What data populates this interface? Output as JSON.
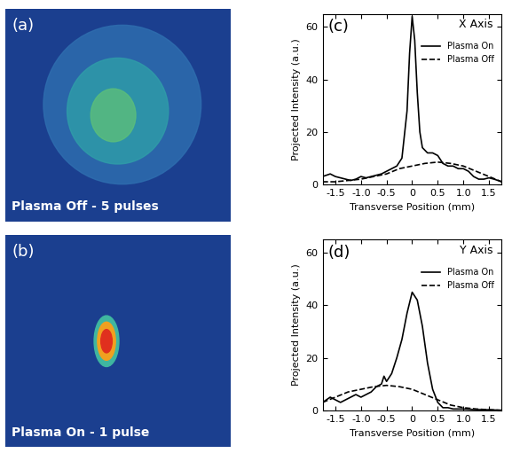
{
  "chart_data": [
    {
      "type": "image",
      "annotations": [
        "(a)",
        "Plasma Off - 5 pulses"
      ]
    },
    {
      "type": "image",
      "annotations": [
        "(b)",
        "Plasma On - 1 pulse"
      ]
    },
    {
      "type": "line",
      "annotations": [
        "(c)",
        "X Axis"
      ],
      "x_label": "Transverse Position (mm)",
      "y_label": "Projected Intensity (a.u.)",
      "xlim": [
        -1.75,
        1.75
      ],
      "xticks": [
        -1.5,
        -1.0,
        -0.5,
        0,
        0.5,
        1.0,
        1.5
      ],
      "ylim": [
        0,
        65
      ],
      "yticks": [
        0,
        20,
        40,
        60
      ],
      "legend": "upper right",
      "series": [
        {
          "name": "Plasma On",
          "line_style": "solid",
          "color": "#000000",
          "x": [
            -1.75,
            -1.6,
            -1.5,
            -1.4,
            -1.3,
            -1.2,
            -1.1,
            -1.0,
            -0.9,
            -0.8,
            -0.7,
            -0.6,
            -0.5,
            -0.4,
            -0.3,
            -0.2,
            -0.1,
            -0.05,
            0,
            0.05,
            0.1,
            0.15,
            0.2,
            0.3,
            0.4,
            0.5,
            0.6,
            0.7,
            0.8,
            0.9,
            1.0,
            1.1,
            1.2,
            1.3,
            1.4,
            1.5,
            1.6,
            1.75
          ],
          "values": [
            3,
            4,
            3,
            2.5,
            2,
            1.5,
            2,
            3,
            2.5,
            3,
            3.5,
            4,
            5,
            6,
            7,
            10,
            28,
            50,
            64,
            55,
            35,
            20,
            14,
            12,
            12,
            11,
            8,
            7,
            7,
            6,
            6,
            5,
            3,
            2,
            2,
            2.5,
            2,
            1
          ]
        },
        {
          "name": "Plasma Off",
          "line_style": "dashed",
          "color": "#000000",
          "x": [
            -1.75,
            -1.5,
            -1.25,
            -1.0,
            -0.75,
            -0.5,
            -0.25,
            0,
            0.25,
            0.5,
            0.75,
            1.0,
            1.25,
            1.5,
            1.75
          ],
          "values": [
            1,
            1,
            1.5,
            2,
            3,
            4,
            6,
            7,
            8,
            8.5,
            8,
            7,
            5,
            3,
            1
          ]
        }
      ]
    },
    {
      "type": "line",
      "annotations": [
        "(d)",
        "Y Axis"
      ],
      "x_label": "Transverse Position (mm)",
      "y_label": "Projected Intensity (a.u.)",
      "xlim": [
        -1.75,
        1.75
      ],
      "xticks": [
        -1.5,
        -1.0,
        -0.5,
        0,
        0.5,
        1.0,
        1.5
      ],
      "ylim": [
        0,
        65
      ],
      "yticks": [
        0,
        20,
        40,
        60
      ],
      "legend": "upper right",
      "series": [
        {
          "name": "Plasma On",
          "line_style": "solid",
          "color": "#000000",
          "x": [
            -1.75,
            -1.6,
            -1.5,
            -1.4,
            -1.3,
            -1.2,
            -1.1,
            -1.0,
            -0.9,
            -0.8,
            -0.7,
            -0.6,
            -0.55,
            -0.5,
            -0.4,
            -0.3,
            -0.2,
            -0.1,
            0,
            0.1,
            0.2,
            0.3,
            0.4,
            0.5,
            0.6,
            0.7,
            0.8,
            1.0,
            1.2,
            1.5,
            1.75
          ],
          "values": [
            3,
            5,
            4,
            3,
            4,
            5,
            6,
            5,
            6,
            7,
            9,
            10,
            13,
            11,
            14,
            20,
            27,
            37,
            45,
            42,
            32,
            18,
            8,
            3,
            1,
            1,
            0.5,
            0.5,
            0.3,
            0.2,
            0
          ]
        },
        {
          "name": "Plasma Off",
          "line_style": "dashed",
          "color": "#000000",
          "x": [
            -1.75,
            -1.5,
            -1.25,
            -1.0,
            -0.75,
            -0.5,
            -0.25,
            0,
            0.25,
            0.5,
            0.75,
            1.0,
            1.25,
            1.5,
            1.75
          ],
          "values": [
            3,
            5,
            7,
            8,
            9,
            9.5,
            9,
            8,
            6,
            4,
            2,
            1,
            0.5,
            0.2,
            0
          ]
        }
      ]
    }
  ]
}
